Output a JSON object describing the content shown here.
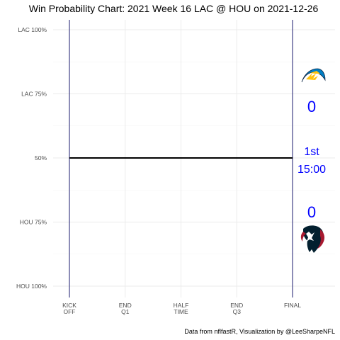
{
  "chart_data": {
    "type": "line",
    "title": "Win Probability Chart: 2021 Week 16 LAC @ HOU on 2021-12-26",
    "caption": "Data from nflfastR, Visualization by @LeeSharpeNFL",
    "y_tick_labels": [
      "LAC 100%",
      "LAC 75%",
      "50%",
      "HOU 75%",
      "HOU 100%"
    ],
    "y_tick_values": [
      1.0,
      0.75,
      0.5,
      0.25,
      0.0
    ],
    "ylim": [
      0,
      1
    ],
    "x_tick_labels": [
      [
        "KICK",
        "OFF"
      ],
      [
        "END",
        "Q1"
      ],
      [
        "HALF",
        "TIME"
      ],
      [
        "END",
        "Q3"
      ],
      [
        "FINAL"
      ]
    ],
    "x_tick_values": [
      0,
      15,
      30,
      45,
      60
    ],
    "xlim": [
      0,
      60
    ],
    "grid": true,
    "series": [
      {
        "x": [
          0,
          60
        ],
        "values": [
          0.5,
          0.5
        ],
        "color": "#000000"
      }
    ],
    "away": {
      "team": "LAC",
      "score": "0",
      "logo_icon": "chargers-bolt-icon"
    },
    "home": {
      "team": "HOU",
      "score": "0",
      "logo_icon": "texans-bull-icon"
    },
    "game_status": {
      "quarter": "1st",
      "clock": "15:00"
    },
    "colors": {
      "status_text": "#0000ff",
      "boundary_lines": "#1a1a6e",
      "chargers_blue": "#0080c6",
      "chargers_gold": "#ffc20e",
      "texans_navy": "#03202f",
      "texans_red": "#a71930"
    }
  }
}
